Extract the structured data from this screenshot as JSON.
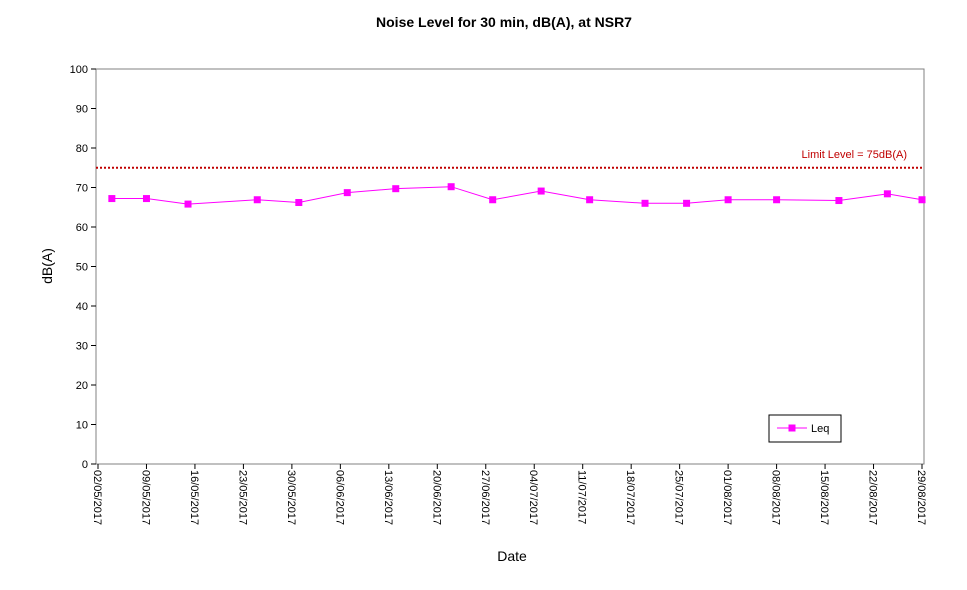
{
  "chart_data": {
    "type": "line",
    "title": "Noise Level for 30 min, dB(A), at NSR7",
    "xlabel": "Date",
    "ylabel": "dB(A)",
    "ylim": [
      0,
      100
    ],
    "yticks": [
      0,
      10,
      20,
      30,
      40,
      50,
      60,
      70,
      80,
      90,
      100
    ],
    "xlim": [
      "02/05/2017",
      "29/08/2017"
    ],
    "xticks": [
      "02/05/2017",
      "09/05/2017",
      "16/05/2017",
      "23/05/2017",
      "30/05/2017",
      "06/06/2017",
      "13/06/2017",
      "20/06/2017",
      "27/06/2017",
      "04/07/2017",
      "11/07/2017",
      "18/07/2017",
      "25/07/2017",
      "01/08/2017",
      "08/08/2017",
      "15/08/2017",
      "22/08/2017",
      "29/08/2017"
    ],
    "grid": false,
    "legend": {
      "position": "bottom-right",
      "entries": [
        "Leq"
      ]
    },
    "series": [
      {
        "name": "Leq",
        "color": "#ff00ff",
        "marker": "square",
        "points": [
          {
            "x": "04/05/2017",
            "y": 67.2
          },
          {
            "x": "09/05/2017",
            "y": 67.2
          },
          {
            "x": "15/05/2017",
            "y": 65.8
          },
          {
            "x": "25/05/2017",
            "y": 66.9
          },
          {
            "x": "31/05/2017",
            "y": 66.2
          },
          {
            "x": "07/06/2017",
            "y": 68.7
          },
          {
            "x": "14/06/2017",
            "y": 69.7
          },
          {
            "x": "22/06/2017",
            "y": 70.2
          },
          {
            "x": "28/06/2017",
            "y": 66.9
          },
          {
            "x": "05/07/2017",
            "y": 69.1
          },
          {
            "x": "12/07/2017",
            "y": 66.9
          },
          {
            "x": "20/07/2017",
            "y": 66.0
          },
          {
            "x": "26/07/2017",
            "y": 66.0
          },
          {
            "x": "01/08/2017",
            "y": 66.9
          },
          {
            "x": "08/08/2017",
            "y": 66.9
          },
          {
            "x": "17/08/2017",
            "y": 66.7
          },
          {
            "x": "24/08/2017",
            "y": 68.4
          },
          {
            "x": "29/08/2017",
            "y": 66.9
          }
        ]
      }
    ],
    "limit": {
      "value": 75,
      "label": "Limit Level  = 75dB(A)",
      "color": "#c00000",
      "style": "dotted"
    }
  }
}
